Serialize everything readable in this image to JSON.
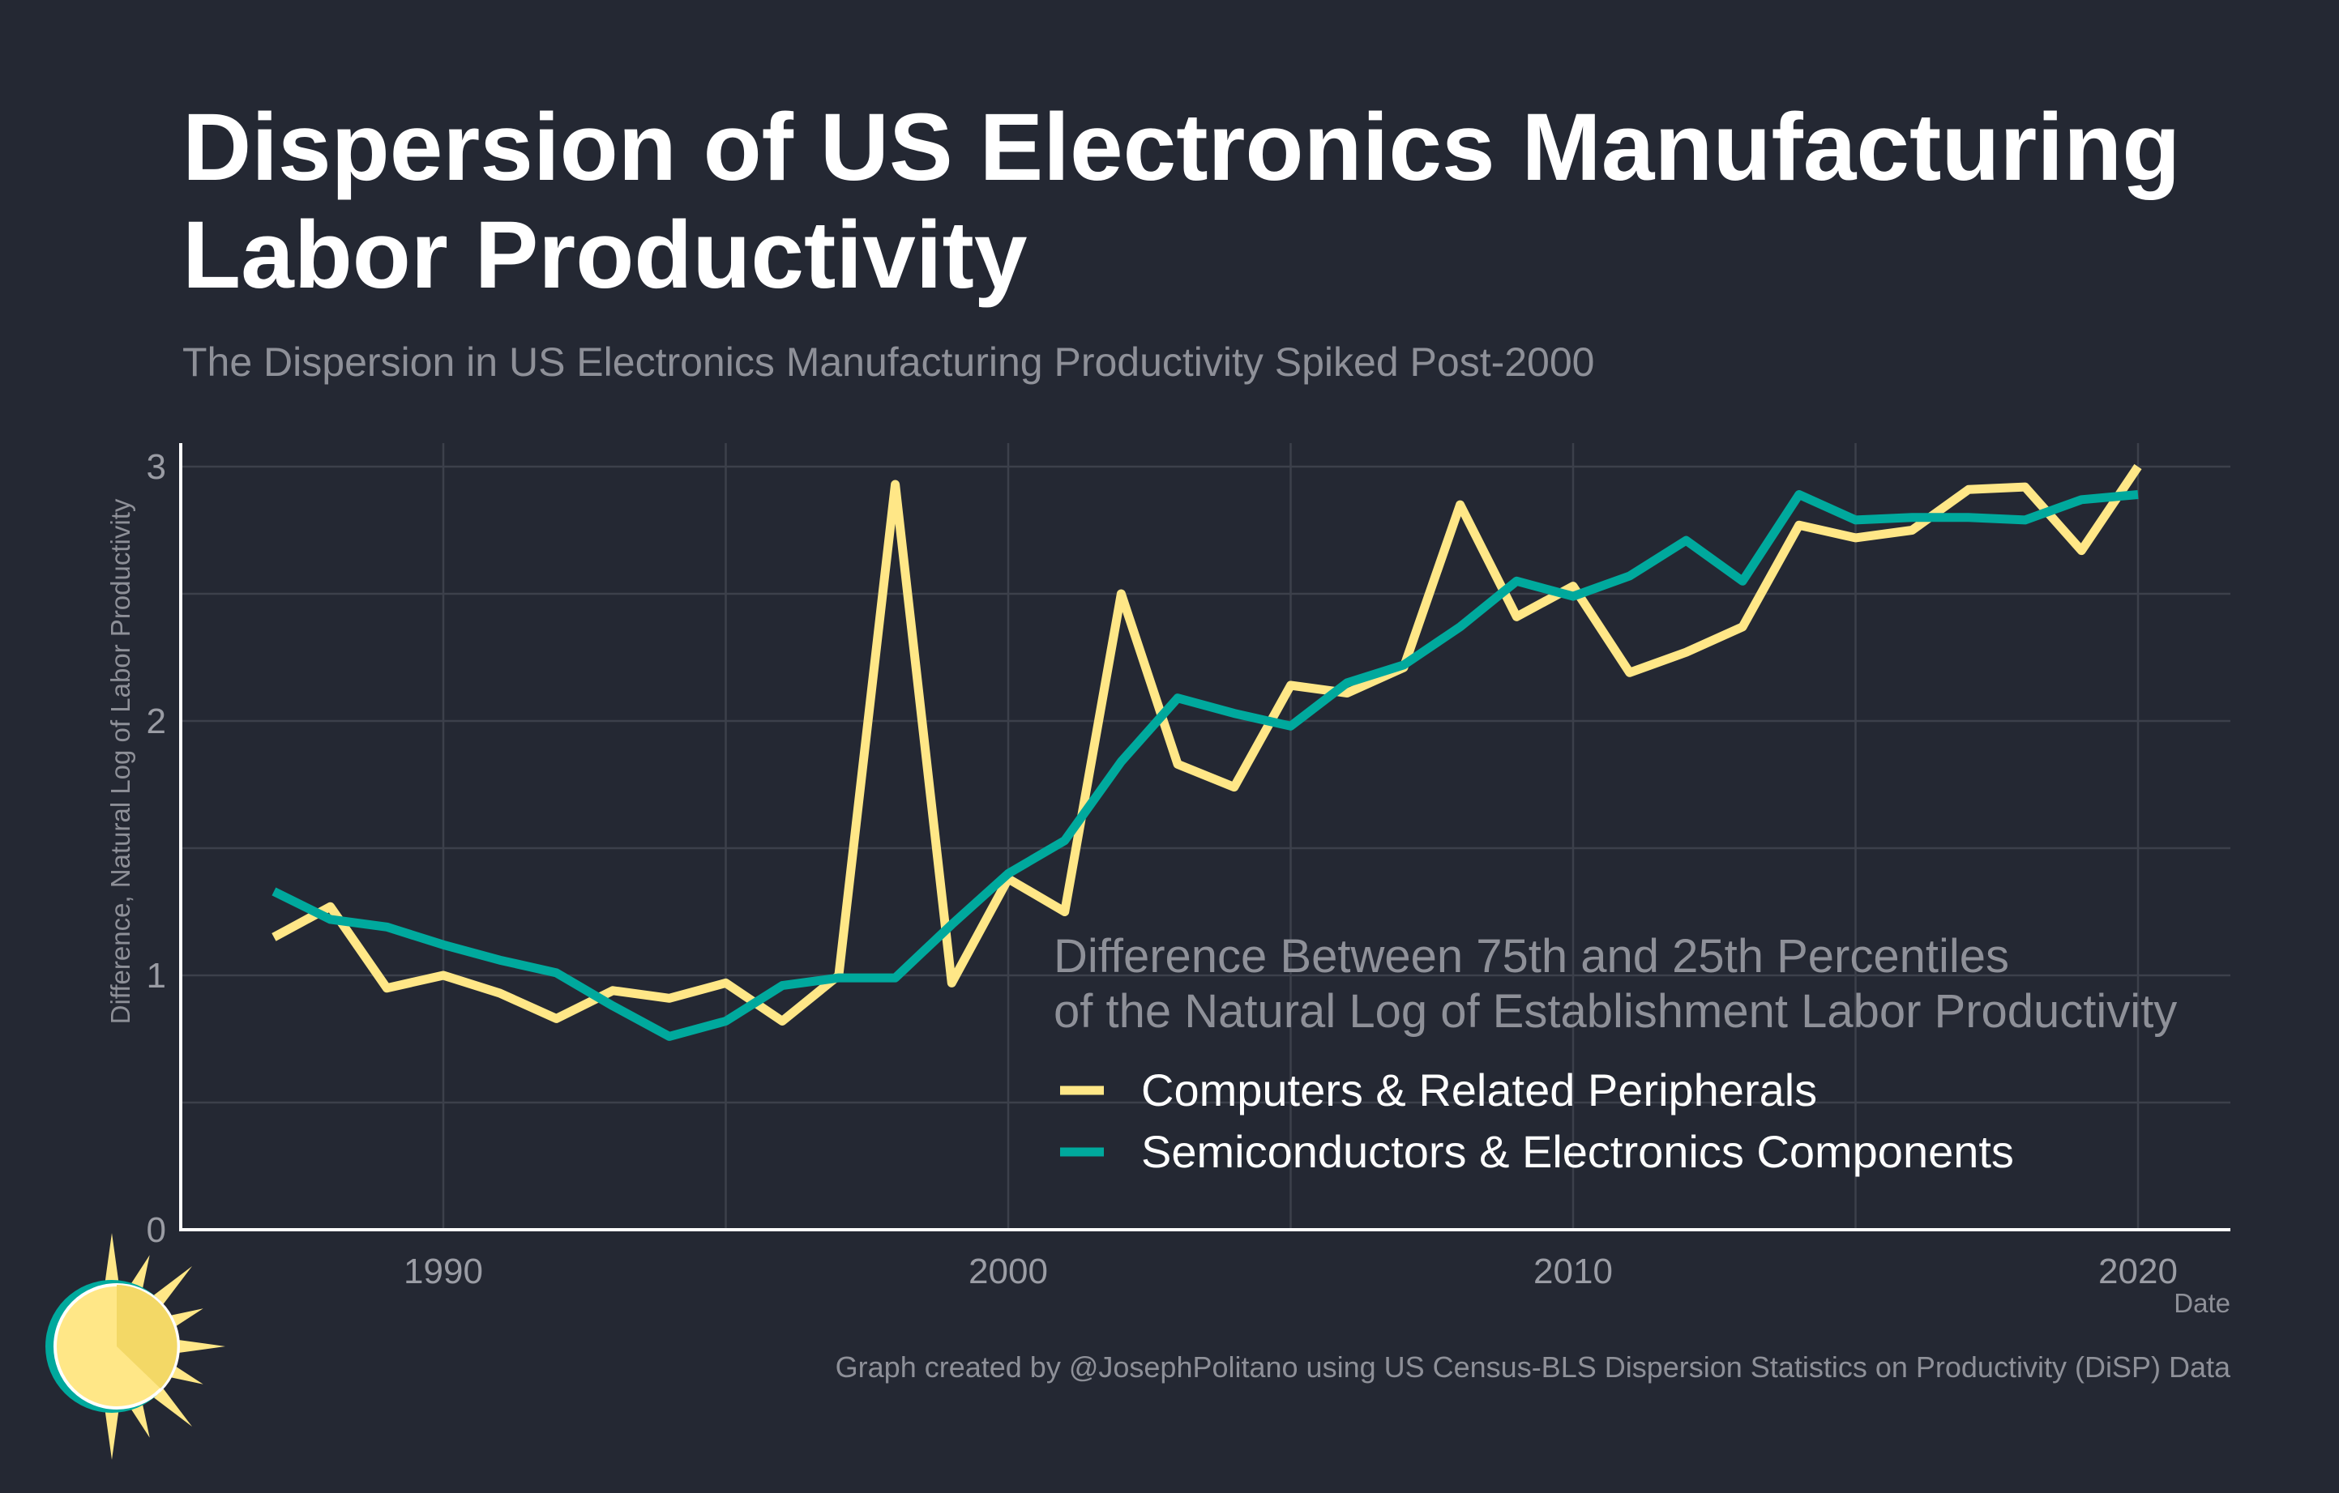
{
  "chart_data": {
    "type": "line",
    "title": "Dispersion of US Electronics Manufacturing Labor Productivity",
    "title_lines": [
      "Dispersion of US Electronics Manufacturing",
      "Labor Productivity"
    ],
    "subtitle": "The Dispersion in US Electronics Manufacturing Productivity Spiked Post-2000",
    "xlabel": "Date",
    "ylabel": "Difference, Natural Log of Labor Productivity",
    "xlim": [
      1985.35,
      2021.63
    ],
    "ylim": [
      0,
      3.1
    ],
    "x_ticks": [
      1990,
      2000,
      2010,
      2020
    ],
    "y_ticks": [
      0,
      1,
      2,
      3
    ],
    "grid": true,
    "legend": {
      "placement": "bottom-right",
      "title_lines": [
        "Difference Between 75th and 25th Percentiles",
        "of the Natural Log of Establishment Labor Productivity"
      ]
    },
    "x": [
      1987,
      1988,
      1989,
      1990,
      1991,
      1992,
      1993,
      1994,
      1995,
      1996,
      1997,
      1998,
      1999,
      2000,
      2001,
      2002,
      2003,
      2004,
      2005,
      2006,
      2007,
      2008,
      2009,
      2010,
      2011,
      2012,
      2013,
      2014,
      2015,
      2016,
      2017,
      2018,
      2019,
      2020
    ],
    "series": [
      {
        "name": "Computers & Related Peripherals",
        "color": "#ffe787",
        "values": [
          1.15,
          1.27,
          0.95,
          1.0,
          0.93,
          0.83,
          0.94,
          0.91,
          0.97,
          0.82,
          1.0,
          2.93,
          0.97,
          1.38,
          1.25,
          2.5,
          1.83,
          1.74,
          2.14,
          2.11,
          2.21,
          2.85,
          2.41,
          2.53,
          2.19,
          2.27,
          2.37,
          2.77,
          2.72,
          2.75,
          2.91,
          2.92,
          2.67,
          3.0
        ]
      },
      {
        "name": "Semiconductors & Electronics Components",
        "color": "#00a99d",
        "values": [
          1.33,
          1.22,
          1.19,
          1.12,
          1.06,
          1.01,
          0.88,
          0.76,
          0.82,
          0.96,
          0.99,
          0.99,
          1.2,
          1.4,
          1.53,
          1.84,
          2.09,
          2.03,
          1.98,
          2.15,
          2.22,
          2.37,
          2.55,
          2.49,
          2.57,
          2.71,
          2.55,
          2.89,
          2.79,
          2.8,
          2.8,
          2.79,
          2.87,
          2.89
        ]
      }
    ],
    "caption": "Graph created by @JosephPolitano using US Census-BLS Dispersion Statistics on Productivity (DiSP) Data"
  },
  "colors": {
    "background": "#242833",
    "gridline": "#3c404b",
    "axis": "#ffffff"
  },
  "logo": {
    "icon": "sun-icon",
    "colors": [
      "#ffe787",
      "#00a99d"
    ]
  }
}
